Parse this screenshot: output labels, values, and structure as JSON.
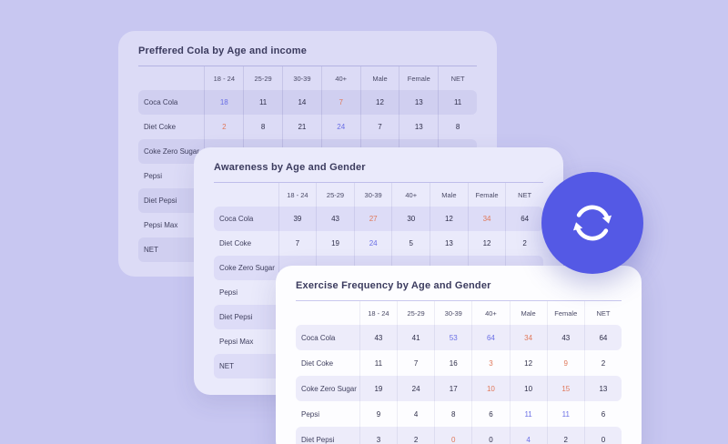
{
  "background_color": "#c8c7f1",
  "accent": {
    "orange": "#e0785a",
    "blue": "#696ee5",
    "ink": "#2e2e49"
  },
  "sync_badge": {
    "icon": "refresh-icon",
    "color": "#5459e5"
  },
  "cards": [
    {
      "title": "Preffered Cola by Age and income",
      "columns": [
        "18 - 24",
        "25-29",
        "30-39",
        "40+",
        "Male",
        "Female",
        "NET"
      ],
      "rows": [
        {
          "label": "Coca Cola",
          "values": [
            "18",
            "11",
            "14",
            "7",
            "12",
            "13",
            "11"
          ],
          "colors": [
            "blue",
            null,
            null,
            "orange",
            null,
            null,
            null
          ]
        },
        {
          "label": "Diet Coke",
          "values": [
            "2",
            "8",
            "21",
            "24",
            "7",
            "13",
            "8"
          ],
          "colors": [
            "orange",
            null,
            null,
            "blue",
            null,
            null,
            null
          ]
        },
        {
          "label": "Coke Zero Sugar",
          "values": [],
          "colors": []
        },
        {
          "label": "Pepsi",
          "values": [],
          "colors": []
        },
        {
          "label": "Diet Pepsi",
          "values": [],
          "colors": []
        },
        {
          "label": "Pepsi Max",
          "values": [],
          "colors": []
        },
        {
          "label": "NET",
          "values": [],
          "colors": []
        }
      ]
    },
    {
      "title": "Awareness by Age and Gender",
      "columns": [
        "18 - 24",
        "25-29",
        "30-39",
        "40+",
        "Male",
        "Female",
        "NET"
      ],
      "rows": [
        {
          "label": "Coca Cola",
          "values": [
            "39",
            "43",
            "27",
            "30",
            "12",
            "34",
            "64"
          ],
          "colors": [
            null,
            null,
            "orange",
            null,
            null,
            "orange",
            null
          ]
        },
        {
          "label": "Diet Coke",
          "values": [
            "7",
            "19",
            "24",
            "5",
            "13",
            "12",
            "2"
          ],
          "colors": [
            null,
            null,
            "blue",
            null,
            null,
            null,
            null
          ]
        },
        {
          "label": "Coke Zero Sugar",
          "values": [],
          "colors": []
        },
        {
          "label": "Pepsi",
          "values": [],
          "colors": []
        },
        {
          "label": "Diet Pepsi",
          "values": [],
          "colors": []
        },
        {
          "label": "Pepsi Max",
          "values": [],
          "colors": []
        },
        {
          "label": "NET",
          "values": [],
          "colors": []
        }
      ]
    },
    {
      "title": "Exercise Frequency by Age and Gender",
      "columns": [
        "18 - 24",
        "25-29",
        "30-39",
        "40+",
        "Male",
        "Female",
        "NET"
      ],
      "rows": [
        {
          "label": "Coca Cola",
          "values": [
            "43",
            "41",
            "53",
            "64",
            "34",
            "43",
            "64"
          ],
          "colors": [
            null,
            null,
            "blue",
            "blue",
            "orange",
            null,
            null
          ]
        },
        {
          "label": "Diet Coke",
          "values": [
            "11",
            "7",
            "16",
            "3",
            "12",
            "9",
            "2"
          ],
          "colors": [
            null,
            null,
            null,
            "orange",
            null,
            "orange",
            null
          ]
        },
        {
          "label": "Coke Zero Sugar",
          "values": [
            "19",
            "24",
            "17",
            "10",
            "10",
            "15",
            "13"
          ],
          "colors": [
            null,
            null,
            null,
            "orange",
            null,
            "orange",
            null
          ]
        },
        {
          "label": "Pepsi",
          "values": [
            "9",
            "4",
            "8",
            "6",
            "11",
            "11",
            "6"
          ],
          "colors": [
            null,
            null,
            null,
            null,
            "blue",
            "blue",
            null
          ]
        },
        {
          "label": "Diet Pepsi",
          "values": [
            "3",
            "2",
            "0",
            "0",
            "4",
            "2",
            "0"
          ],
          "colors": [
            null,
            null,
            "orange",
            null,
            "blue",
            null,
            null
          ]
        }
      ]
    }
  ]
}
